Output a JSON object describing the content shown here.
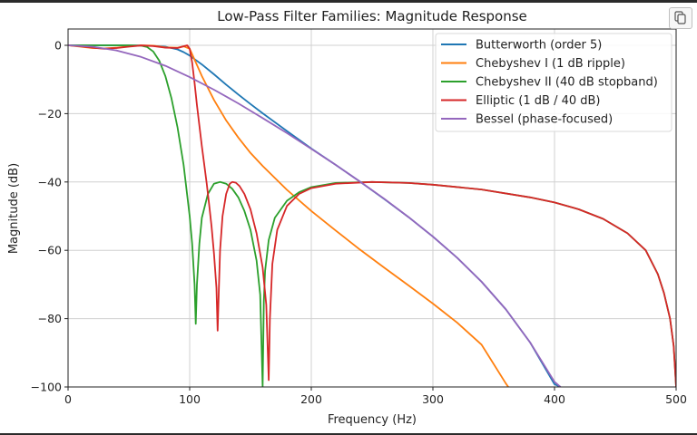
{
  "ui": {
    "copy_button_icon": "copy-icon"
  },
  "chart_data": {
    "type": "line",
    "title": "Low-Pass Filter Families: Magnitude Response",
    "xlabel": "Frequency (Hz)",
    "ylabel": "Magnitude (dB)",
    "xlim": [
      0,
      500
    ],
    "ylim": [
      -100,
      5
    ],
    "xticks": [
      0,
      100,
      200,
      300,
      400,
      500
    ],
    "yticks": [
      0,
      -20,
      -40,
      -60,
      -80,
      -100
    ],
    "xtick_labels": [
      "0",
      "100",
      "200",
      "300",
      "400",
      "500"
    ],
    "ytick_labels": [
      "0",
      "−20",
      "−40",
      "−60",
      "−80",
      "−100"
    ],
    "grid": true,
    "legend_position": "top-right",
    "series": [
      {
        "name": "Butterworth (order 5)",
        "color": "#1f77b4",
        "x": [
          0,
          20,
          40,
          60,
          70,
          80,
          90,
          95,
          100,
          105,
          110,
          120,
          130,
          140,
          150,
          160,
          180,
          200,
          220,
          240,
          260,
          280,
          300,
          320,
          340,
          360,
          380,
          400,
          405
        ],
        "y": [
          0,
          0,
          0,
          -0.05,
          -0.15,
          -0.4,
          -1.2,
          -2.0,
          -3.0,
          -4.3,
          -5.6,
          -8.5,
          -11.5,
          -14.4,
          -17.2,
          -19.9,
          -25.1,
          -30.2,
          -35.0,
          -39.9,
          -45.0,
          -50.3,
          -56.0,
          -62.2,
          -69.2,
          -77.3,
          -87.0,
          -99.2,
          -100
        ]
      },
      {
        "name": "Chebyshev I (1 dB ripple)",
        "color": "#ff7f0e",
        "x": [
          0,
          10,
          20,
          30,
          40,
          50,
          60,
          70,
          80,
          90,
          95,
          100,
          105,
          110,
          120,
          130,
          140,
          150,
          160,
          180,
          200,
          220,
          240,
          260,
          280,
          300,
          320,
          340,
          360,
          362
        ],
        "y": [
          0,
          -0.4,
          -0.8,
          -0.9,
          -0.7,
          -0.3,
          0,
          -0.1,
          -0.6,
          -0.7,
          -0.3,
          -1.0,
          -5.0,
          -9.0,
          -16.0,
          -22.0,
          -27.0,
          -31.5,
          -35.3,
          -42.3,
          -48.5,
          -54.2,
          -59.8,
          -65.1,
          -70.3,
          -75.6,
          -81.2,
          -87.6,
          -99.0,
          -100
        ]
      },
      {
        "name": "Chebyshev II (40 dB stopband)",
        "color": "#2ca02c",
        "x": [
          0,
          20,
          40,
          50,
          60,
          65,
          70,
          75,
          80,
          85,
          90,
          95,
          100,
          102,
          104,
          105,
          106,
          108,
          110,
          115,
          120,
          125,
          130,
          135,
          140,
          145,
          150,
          155,
          158,
          160,
          161,
          162,
          165,
          170,
          180,
          190,
          200,
          220,
          250,
          280,
          300,
          340,
          380,
          400,
          420,
          440,
          460,
          475,
          485,
          490,
          495,
          498,
          500
        ],
        "y": [
          0,
          0,
          0,
          0,
          -0.1,
          -0.5,
          -1.8,
          -4.5,
          -9.0,
          -15.5,
          -24.0,
          -35.0,
          -50.0,
          -58.0,
          -70.0,
          -81.5,
          -70.0,
          -58.0,
          -50.5,
          -43.5,
          -40.5,
          -40.0,
          -40.5,
          -42.0,
          -44.5,
          -48.5,
          -54.0,
          -63.0,
          -73.0,
          -100,
          -75.0,
          -66.0,
          -57.0,
          -50.5,
          -45.5,
          -43.0,
          -41.5,
          -40.3,
          -40.0,
          -40.3,
          -40.8,
          -42.2,
          -44.5,
          -46.0,
          -48.0,
          -50.8,
          -55.0,
          -60.0,
          -67.0,
          -72.5,
          -80.0,
          -88.0,
          -100
        ]
      },
      {
        "name": "Elliptic (1 dB / 40 dB)",
        "color": "#d62728",
        "x": [
          0,
          10,
          20,
          30,
          40,
          50,
          60,
          70,
          80,
          90,
          95,
          98,
          100,
          102,
          104,
          106,
          108,
          110,
          112,
          114,
          116,
          118,
          120,
          122,
          123,
          124,
          125,
          127,
          130,
          133,
          135,
          138,
          141,
          145,
          150,
          155,
          160,
          163,
          165,
          166,
          168,
          172,
          180,
          190,
          200,
          220,
          250,
          280,
          300,
          340,
          380,
          400,
          420,
          440,
          460,
          475,
          485,
          490,
          495,
          498,
          500
        ],
        "y": [
          0,
          -0.3,
          -0.7,
          -1.0,
          -0.8,
          -0.4,
          -0.05,
          -0.2,
          -0.7,
          -0.8,
          -0.3,
          0,
          -1.0,
          -5.0,
          -11.0,
          -17.5,
          -23.5,
          -29.5,
          -35.0,
          -40.5,
          -46.5,
          -53.0,
          -61.0,
          -71.0,
          -83.5,
          -71.0,
          -60.0,
          -50.0,
          -43.5,
          -40.5,
          -40.0,
          -40.2,
          -41.2,
          -43.5,
          -48.0,
          -55.0,
          -65.0,
          -76.0,
          -98.0,
          -80.0,
          -64.0,
          -54.0,
          -47.0,
          -43.5,
          -41.8,
          -40.5,
          -40.0,
          -40.3,
          -40.8,
          -42.2,
          -44.5,
          -46.0,
          -48.0,
          -50.8,
          -55.0,
          -60.0,
          -67.0,
          -72.5,
          -80.0,
          -88.0,
          -100
        ]
      },
      {
        "name": "Bessel (phase-focused)",
        "color": "#9467bd",
        "x": [
          0,
          20,
          40,
          60,
          80,
          100,
          120,
          140,
          160,
          180,
          200,
          220,
          240,
          260,
          280,
          300,
          320,
          340,
          360,
          380,
          400,
          405
        ],
        "y": [
          0,
          -0.4,
          -1.5,
          -3.4,
          -6.0,
          -9.3,
          -13.0,
          -17.0,
          -21.3,
          -25.7,
          -30.3,
          -35.0,
          -39.9,
          -44.9,
          -50.3,
          -56.0,
          -62.2,
          -69.2,
          -77.3,
          -87.0,
          -98.5,
          -100
        ]
      }
    ]
  }
}
